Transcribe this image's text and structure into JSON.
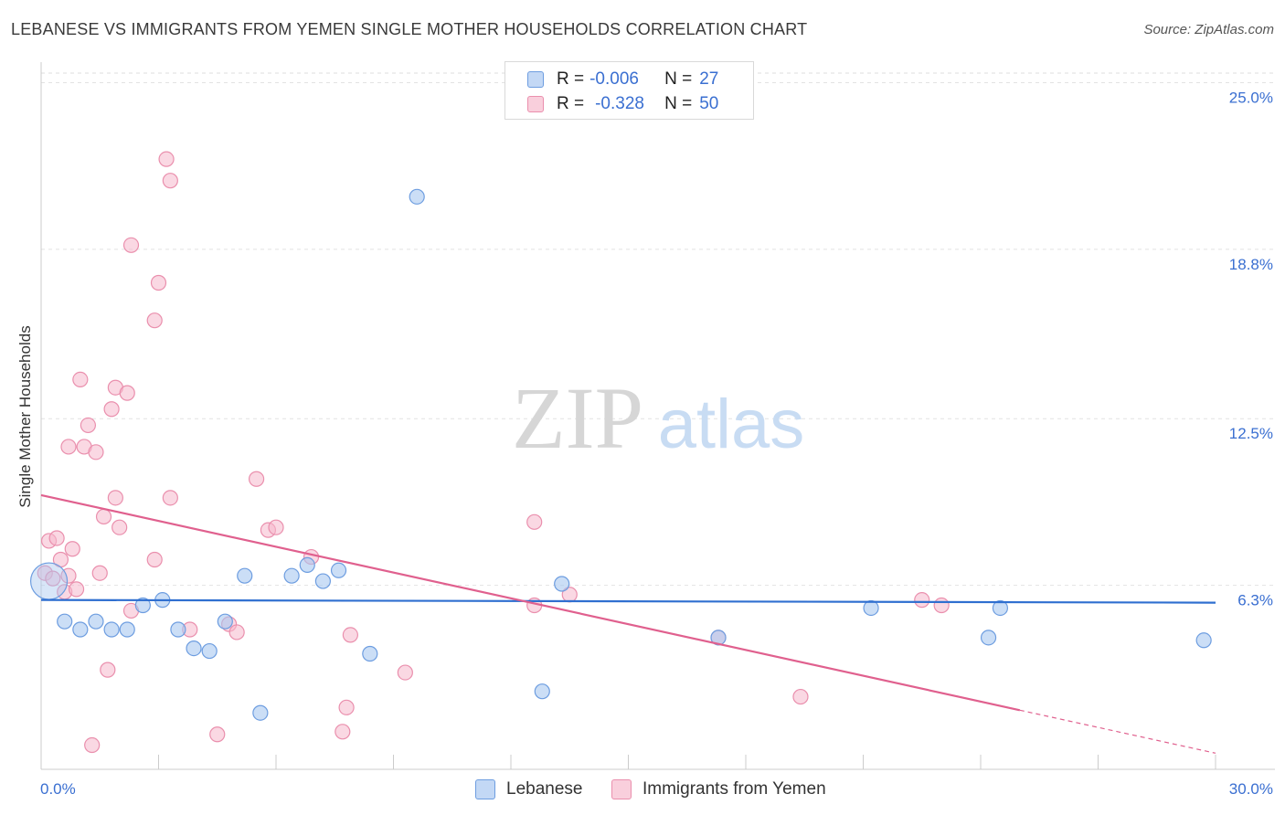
{
  "header": {
    "title": "LEBANESE VS IMMIGRANTS FROM YEMEN SINGLE MOTHER HOUSEHOLDS CORRELATION CHART",
    "source": "Source: ZipAtlas.com"
  },
  "watermark": {
    "zip": "ZIP",
    "atlas": "atlas"
  },
  "legend": {
    "rows": [
      {
        "r_label": "R =",
        "r_value": "-0.006",
        "n_label": "N =",
        "n_value": "27",
        "color": "#a9c8f0"
      },
      {
        "r_label": "R =",
        "r_value": "-0.328",
        "n_label": "N =",
        "n_value": "50",
        "color": "#f6b8cc"
      }
    ]
  },
  "bottom_legend": {
    "series1": "Lebanese",
    "series2": "Immigrants from Yemen"
  },
  "colors": {
    "blue_fill": "#a9c8f0",
    "blue_stroke": "#6d9de0",
    "blue_line": "#2f6fd0",
    "pink_fill": "#f6b8cc",
    "pink_stroke": "#ea8fad",
    "pink_line": "#e0608e",
    "tick_text": "#3a6fd1"
  },
  "chart_data": {
    "type": "scatter",
    "title": "LEBANESE VS IMMIGRANTS FROM YEMEN SINGLE MOTHER HOUSEHOLDS CORRELATION CHART",
    "ylabel": "Single Mother Households",
    "xlim": [
      0,
      30
    ],
    "ylim": [
      0,
      25.9
    ],
    "x_tick_labels": [
      "0.0%",
      "30.0%"
    ],
    "y_ticks": [
      6.3,
      12.5,
      18.8,
      25.0
    ],
    "y_tick_labels": [
      "6.3%",
      "12.5%",
      "18.8%",
      "25.0%"
    ],
    "grid": true,
    "legend_position": "top-center",
    "series": [
      {
        "name": "Lebanese",
        "r": -0.006,
        "n": 27,
        "trend": {
          "x0": 0,
          "y0": 6.3,
          "x1": 30,
          "y1": 6.2
        },
        "points": [
          {
            "x": 0.2,
            "y": 7.0,
            "big": true
          },
          {
            "x": 0.6,
            "y": 5.5
          },
          {
            "x": 1.0,
            "y": 5.2
          },
          {
            "x": 1.4,
            "y": 5.5
          },
          {
            "x": 1.8,
            "y": 5.2
          },
          {
            "x": 2.2,
            "y": 5.2
          },
          {
            "x": 2.6,
            "y": 6.1
          },
          {
            "x": 3.1,
            "y": 6.3
          },
          {
            "x": 3.5,
            "y": 5.2
          },
          {
            "x": 3.9,
            "y": 4.5
          },
          {
            "x": 4.3,
            "y": 4.4
          },
          {
            "x": 4.7,
            "y": 5.5
          },
          {
            "x": 5.2,
            "y": 7.2
          },
          {
            "x": 5.6,
            "y": 2.1
          },
          {
            "x": 6.4,
            "y": 7.2
          },
          {
            "x": 6.8,
            "y": 7.6
          },
          {
            "x": 7.2,
            "y": 7.0
          },
          {
            "x": 7.6,
            "y": 7.4
          },
          {
            "x": 8.4,
            "y": 4.3
          },
          {
            "x": 9.6,
            "y": 21.3
          },
          {
            "x": 12.8,
            "y": 2.9
          },
          {
            "x": 13.3,
            "y": 6.9
          },
          {
            "x": 17.3,
            "y": 4.9
          },
          {
            "x": 21.2,
            "y": 6.0
          },
          {
            "x": 24.2,
            "y": 4.9
          },
          {
            "x": 24.5,
            "y": 6.0
          },
          {
            "x": 29.7,
            "y": 4.8
          }
        ]
      },
      {
        "name": "Immigrants from Yemen",
        "r": -0.328,
        "n": 50,
        "trend": {
          "x0": 0,
          "y0": 10.2,
          "x1": 25.0,
          "y1": 2.2,
          "dash_to_x": 30,
          "dash_to_y": 0.6
        },
        "points": [
          {
            "x": 0.1,
            "y": 7.3
          },
          {
            "x": 0.2,
            "y": 8.5
          },
          {
            "x": 0.3,
            "y": 7.1
          },
          {
            "x": 0.4,
            "y": 8.6
          },
          {
            "x": 0.5,
            "y": 7.8
          },
          {
            "x": 0.6,
            "y": 6.6
          },
          {
            "x": 0.7,
            "y": 7.2
          },
          {
            "x": 0.7,
            "y": 12.0
          },
          {
            "x": 0.8,
            "y": 8.2
          },
          {
            "x": 0.9,
            "y": 6.7
          },
          {
            "x": 1.0,
            "y": 14.5
          },
          {
            "x": 1.1,
            "y": 12.0
          },
          {
            "x": 1.2,
            "y": 12.8
          },
          {
            "x": 1.3,
            "y": 0.9
          },
          {
            "x": 1.4,
            "y": 11.8
          },
          {
            "x": 1.5,
            "y": 7.3
          },
          {
            "x": 1.6,
            "y": 9.4
          },
          {
            "x": 1.7,
            "y": 3.7
          },
          {
            "x": 1.8,
            "y": 13.4
          },
          {
            "x": 1.9,
            "y": 14.2
          },
          {
            "x": 1.9,
            "y": 10.1
          },
          {
            "x": 2.0,
            "y": 9.0
          },
          {
            "x": 2.2,
            "y": 14.0
          },
          {
            "x": 2.3,
            "y": 5.9
          },
          {
            "x": 2.3,
            "y": 19.5
          },
          {
            "x": 2.9,
            "y": 7.8
          },
          {
            "x": 2.9,
            "y": 16.7
          },
          {
            "x": 3.0,
            "y": 18.1
          },
          {
            "x": 3.2,
            "y": 22.7
          },
          {
            "x": 3.3,
            "y": 21.9
          },
          {
            "x": 3.3,
            "y": 10.1
          },
          {
            "x": 3.8,
            "y": 5.2
          },
          {
            "x": 4.5,
            "y": 1.3
          },
          {
            "x": 4.8,
            "y": 5.4
          },
          {
            "x": 5.0,
            "y": 5.1
          },
          {
            "x": 5.5,
            "y": 10.8
          },
          {
            "x": 5.8,
            "y": 8.9
          },
          {
            "x": 6.0,
            "y": 9.0
          },
          {
            "x": 6.9,
            "y": 7.9
          },
          {
            "x": 7.7,
            "y": 1.4
          },
          {
            "x": 7.8,
            "y": 2.3
          },
          {
            "x": 7.9,
            "y": 5.0
          },
          {
            "x": 9.3,
            "y": 3.6
          },
          {
            "x": 12.6,
            "y": 6.1
          },
          {
            "x": 12.6,
            "y": 9.2
          },
          {
            "x": 13.5,
            "y": 6.5
          },
          {
            "x": 17.3,
            "y": 4.9
          },
          {
            "x": 19.4,
            "y": 2.7
          },
          {
            "x": 22.5,
            "y": 6.3
          },
          {
            "x": 23.0,
            "y": 6.1
          }
        ]
      }
    ]
  }
}
